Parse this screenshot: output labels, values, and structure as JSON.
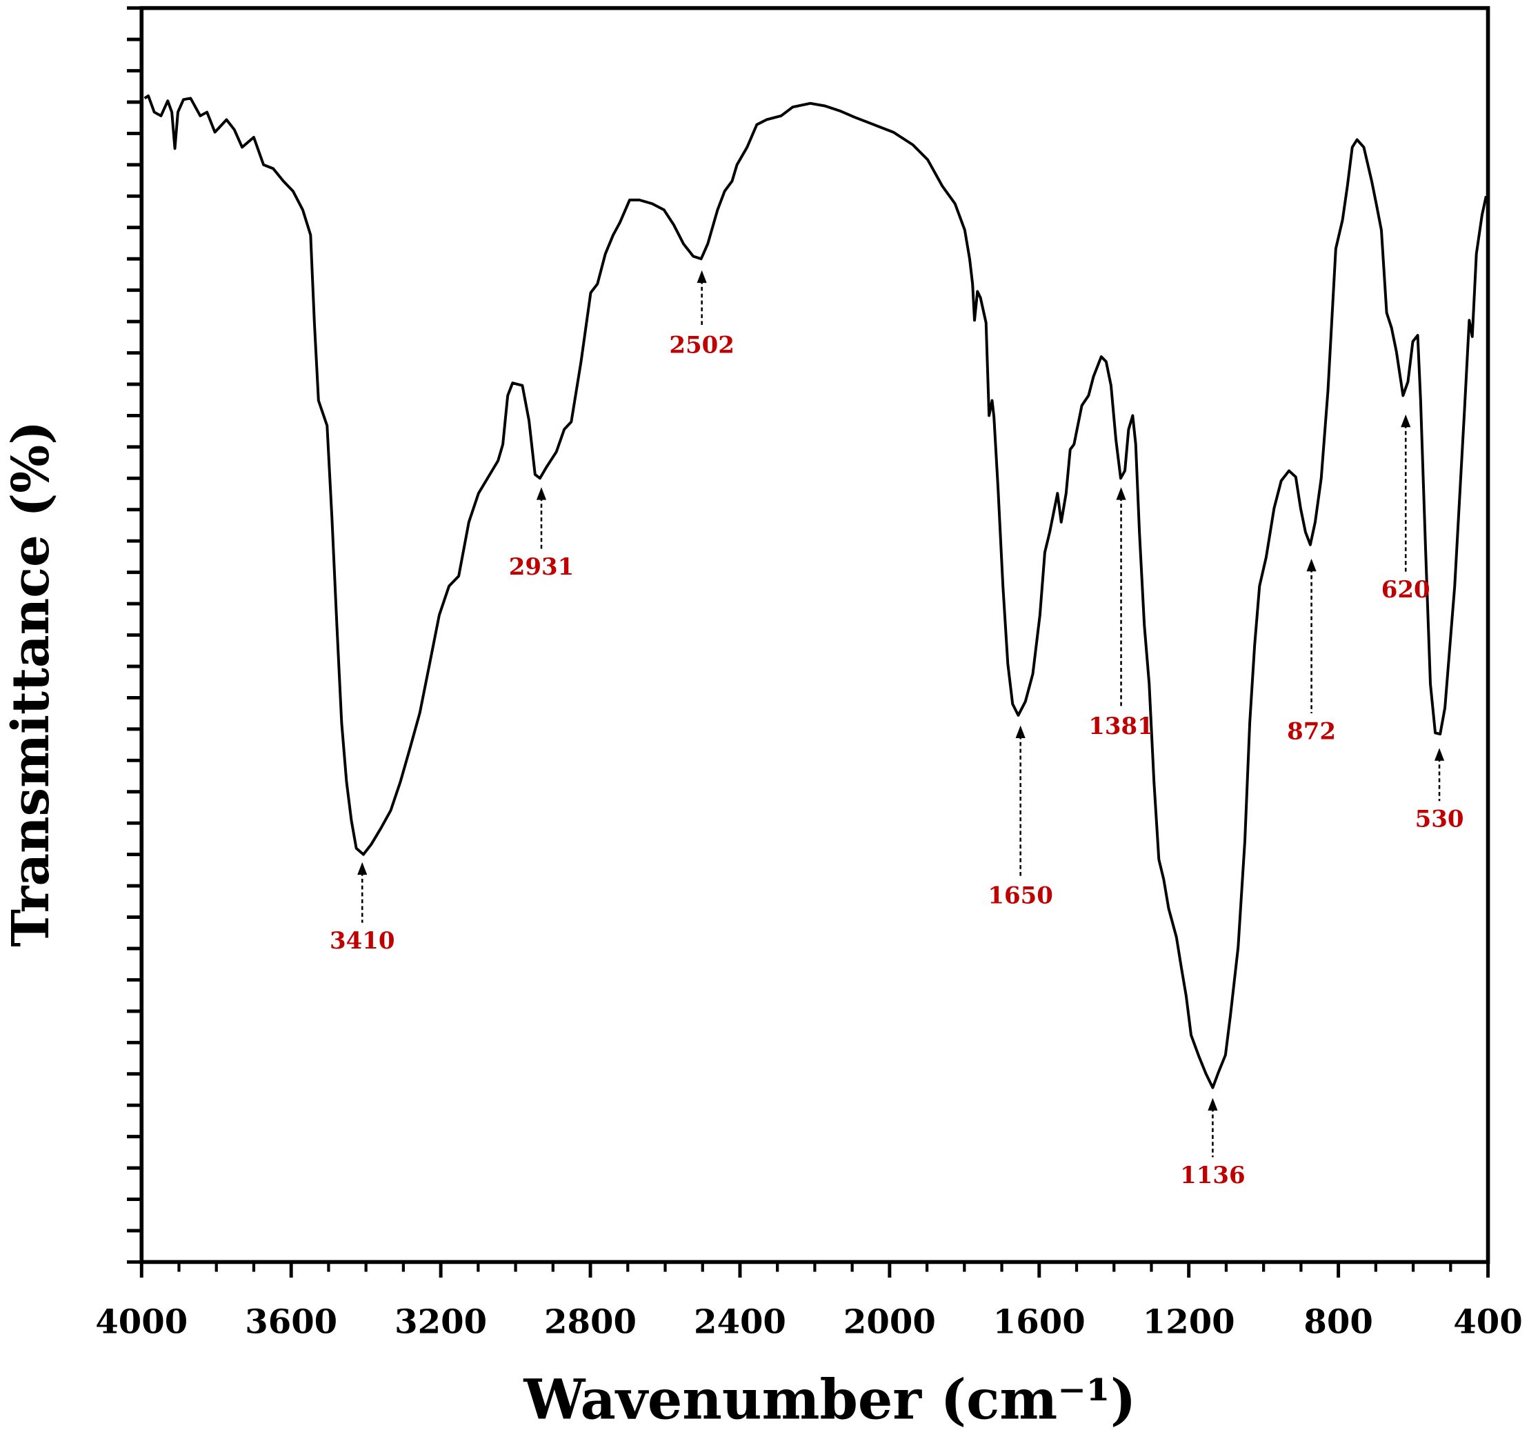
{
  "chart_data": {
    "type": "line",
    "x_label": "Wavenumber (cm⁻¹)",
    "y_label": "Transmittance (%)",
    "color": "#000000",
    "xlim": [
      4000,
      400
    ],
    "xticks": [
      4000,
      3600,
      3200,
      2800,
      2400,
      2000,
      1600,
      1200,
      800,
      400
    ],
    "x_minor_ticks": [
      3900,
      3800,
      3700,
      3500,
      3400,
      3300,
      3100,
      3000,
      2900,
      2700,
      2600,
      2500,
      2300,
      2200,
      2100,
      1900,
      1800,
      1700,
      1500,
      1400,
      1300,
      1100,
      1000,
      900,
      700,
      600,
      500
    ],
    "ylim": [
      0,
      100
    ],
    "yticks": [
      0,
      2.5,
      5,
      7.5,
      10,
      12.5,
      15,
      17.5,
      20,
      22.5,
      25,
      27.5,
      30,
      32.5,
      35,
      37.5,
      40,
      42.5,
      45,
      47.5,
      50,
      52.5,
      55,
      57.5,
      60,
      62.5,
      65,
      67.5,
      70,
      72.5,
      75,
      77.5,
      80,
      82.5,
      85,
      87.5,
      90,
      92.5,
      95,
      97.5,
      100
    ],
    "x": [
      3992,
      3982,
      3966,
      3948,
      3930,
      3919,
      3911,
      3903,
      3888,
      3869,
      3843,
      3825,
      3804,
      3773,
      3752,
      3731,
      3700,
      3674,
      3648,
      3621,
      3595,
      3569,
      3548,
      3538,
      3527,
      3504,
      3491,
      3478,
      3465,
      3452,
      3439,
      3426,
      3407,
      3386,
      3360,
      3334,
      3308,
      3282,
      3256,
      3230,
      3204,
      3178,
      3152,
      3125,
      3099,
      3073,
      3047,
      3034,
      3021,
      3008,
      2982,
      2964,
      2948,
      2935,
      2917,
      2891,
      2870,
      2851,
      2825,
      2799,
      2781,
      2760,
      2739,
      2721,
      2695,
      2669,
      2635,
      2603,
      2577,
      2551,
      2525,
      2504,
      2486,
      2460,
      2441,
      2421,
      2408,
      2381,
      2355,
      2329,
      2290,
      2259,
      2212,
      2173,
      2133,
      2094,
      2042,
      1990,
      1938,
      1898,
      1859,
      1825,
      1799,
      1786,
      1778,
      1773,
      1765,
      1757,
      1742,
      1734,
      1726,
      1721,
      1710,
      1697,
      1684,
      1671,
      1656,
      1637,
      1617,
      1598,
      1585,
      1572,
      1559,
      1551,
      1541,
      1528,
      1517,
      1507,
      1486,
      1468,
      1455,
      1434,
      1421,
      1408,
      1395,
      1382,
      1371,
      1361,
      1350,
      1342,
      1332,
      1319,
      1306,
      1293,
      1280,
      1267,
      1254,
      1233,
      1220,
      1207,
      1194,
      1173,
      1154,
      1136,
      1121,
      1102,
      1089,
      1068,
      1050,
      1037,
      1024,
      1011,
      993,
      972,
      953,
      932,
      914,
      901,
      888,
      875,
      862,
      846,
      828,
      807,
      789,
      776,
      763,
      750,
      732,
      711,
      698,
      685,
      671,
      658,
      645,
      627,
      614,
      601,
      588,
      580,
      567,
      554,
      541,
      528,
      515,
      489,
      463,
      450,
      442,
      431,
      416,
      405
    ],
    "values": [
      92.8,
      93.0,
      91.7,
      91.4,
      92.6,
      91.7,
      88.8,
      91.7,
      92.7,
      92.8,
      91.4,
      91.7,
      90.1,
      91.1,
      90.3,
      88.9,
      89.7,
      87.5,
      87.2,
      86.2,
      85.4,
      83.9,
      81.9,
      74.9,
      68.7,
      66.7,
      59.3,
      50.8,
      43.0,
      38.3,
      35.2,
      33.0,
      32.5,
      33.3,
      34.6,
      36.0,
      38.3,
      41.0,
      43.8,
      47.7,
      51.6,
      53.9,
      54.7,
      59.0,
      61.3,
      62.6,
      63.9,
      65.2,
      69.1,
      70.1,
      69.9,
      67.1,
      62.8,
      62.5,
      63.4,
      64.6,
      66.4,
      67.0,
      71.8,
      77.3,
      78.0,
      80.4,
      81.9,
      82.9,
      84.7,
      84.7,
      84.4,
      83.9,
      82.7,
      81.2,
      80.2,
      80.0,
      81.2,
      83.9,
      85.4,
      86.2,
      87.5,
      88.9,
      90.7,
      91.1,
      91.4,
      92.1,
      92.4,
      92.2,
      91.8,
      91.3,
      90.7,
      90.1,
      89.1,
      87.9,
      85.8,
      84.4,
      82.3,
      80.0,
      78.0,
      75.1,
      77.4,
      76.9,
      74.9,
      67.5,
      68.7,
      67.4,
      61.7,
      53.9,
      47.7,
      44.5,
      43.6,
      44.7,
      46.9,
      51.6,
      56.6,
      58.2,
      60.1,
      61.3,
      59.0,
      61.3,
      64.8,
      65.2,
      68.3,
      69.1,
      70.6,
      72.2,
      71.8,
      69.9,
      65.6,
      62.5,
      63.1,
      66.4,
      67.5,
      65.2,
      58.2,
      50.8,
      46.1,
      38.3,
      32.1,
      30.5,
      28.2,
      25.9,
      23.5,
      21.2,
      18.1,
      16.4,
      15.0,
      13.9,
      15.1,
      16.5,
      19.6,
      25.1,
      33.6,
      43.0,
      49.2,
      53.9,
      56.2,
      60.1,
      62.3,
      63.1,
      62.6,
      60.1,
      58.2,
      57.2,
      59.0,
      62.5,
      69.5,
      80.8,
      83.1,
      85.8,
      88.9,
      89.5,
      88.9,
      86.2,
      84.3,
      82.3,
      75.7,
      74.5,
      72.6,
      69.1,
      70.2,
      73.4,
      73.9,
      68.7,
      57.0,
      46.1,
      42.2,
      42.1,
      44.2,
      53.9,
      67.9,
      75.1,
      73.8,
      80.4,
      83.5,
      85.0
    ],
    "annotations": [
      {
        "text": "3410",
        "x": 3410,
        "y": 32.2,
        "label_y": 25.5
      },
      {
        "text": "2931",
        "x": 2931,
        "y": 62.1,
        "label_y": 55.3
      },
      {
        "text": "2502",
        "x": 2502,
        "y": 79.4,
        "label_y": 73.0
      },
      {
        "text": "1650",
        "x": 1650,
        "y": 43.1,
        "label_y": 29.1
      },
      {
        "text": "1381",
        "x": 1381,
        "y": 62.1,
        "label_y": 42.6
      },
      {
        "text": "1136",
        "x": 1136,
        "y": 13.4,
        "label_y": 6.8
      },
      {
        "text": "872",
        "x": 872,
        "y": 56.4,
        "label_y": 42.2
      },
      {
        "text": "620",
        "x": 620,
        "y": 67.9,
        "label_y": 53.5
      },
      {
        "text": "530",
        "x": 530,
        "y": 41.3,
        "label_y": 35.2
      }
    ],
    "annotation_color": "#c00000"
  }
}
